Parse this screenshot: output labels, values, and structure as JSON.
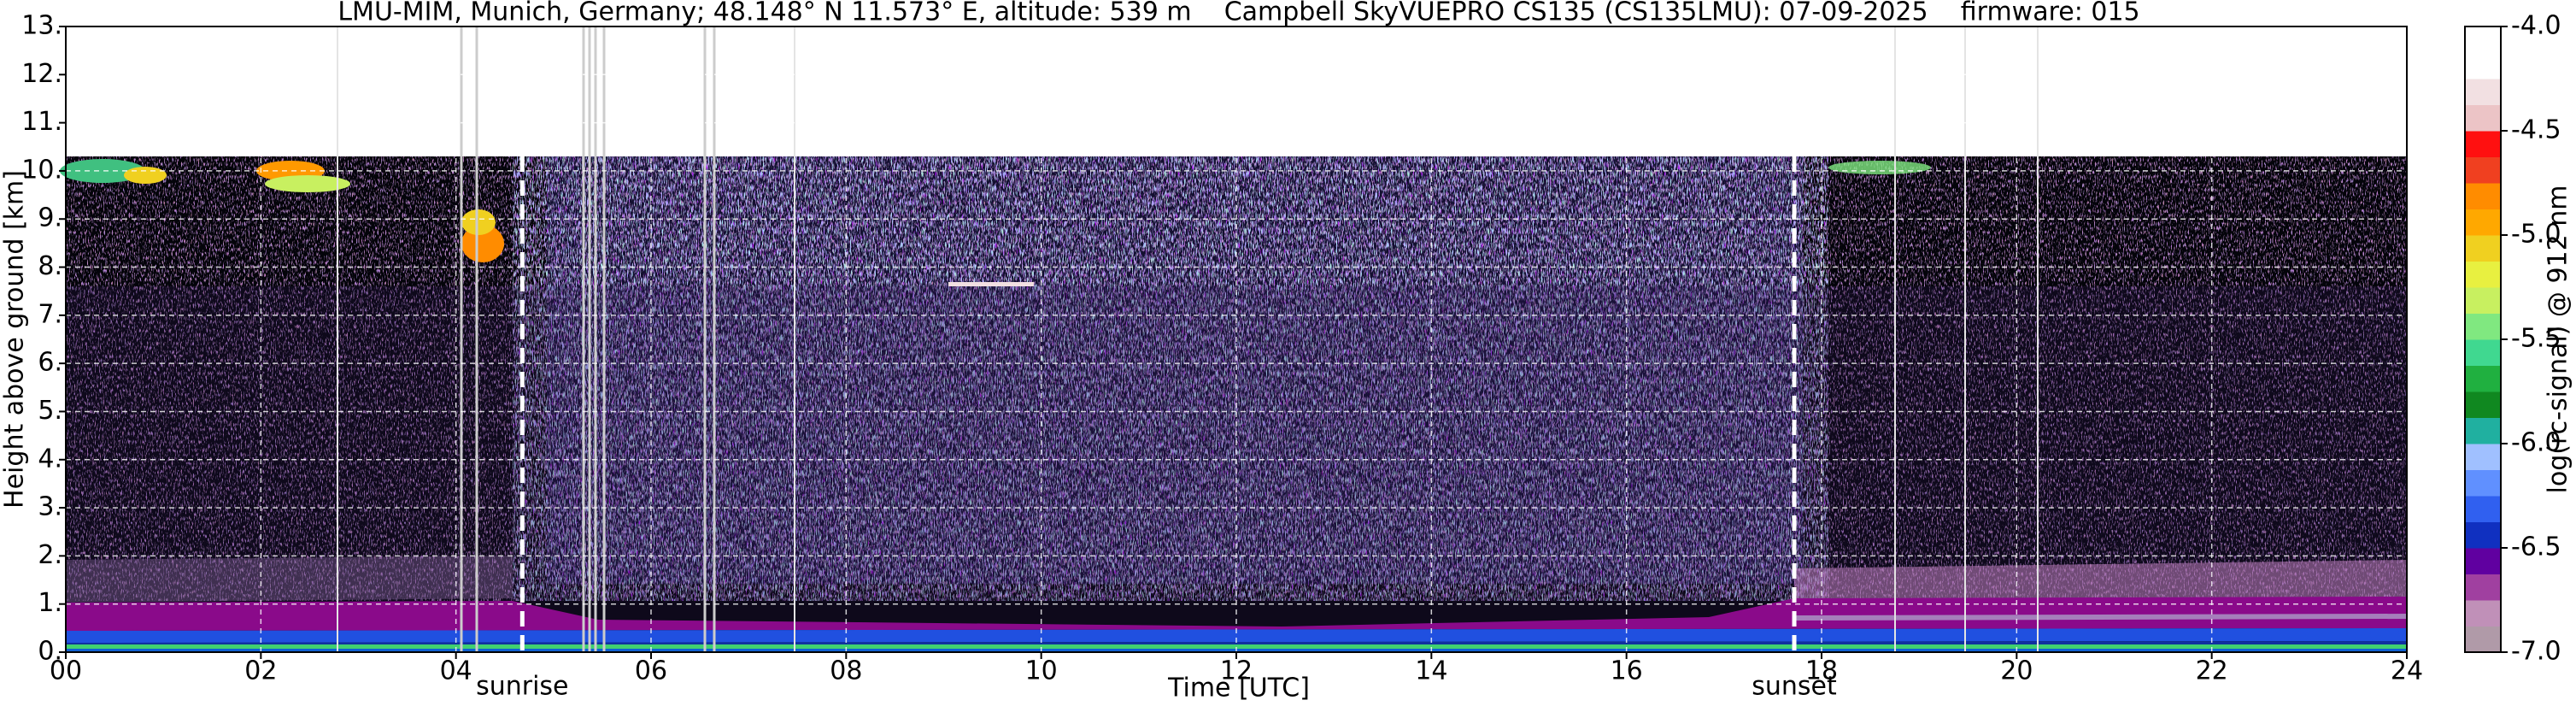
{
  "chart_data": {
    "type": "heatmap",
    "title": "LMU-MIM, Munich, Germany; 48.148° N 11.573° E, altitude: 539 m    Campbell SkyVUEPRO CS135 (CS135LMU): 07-09-2025    firmware: 015",
    "x_label": "Time [UTC]",
    "y_label": "Height above ground [km]",
    "colorbar_label": "log(rc-signal) @ 912 nm",
    "xlim": [
      0,
      24
    ],
    "xticks": [
      {
        "value": 0,
        "label": "00"
      },
      {
        "value": 2,
        "label": "02"
      },
      {
        "value": 4,
        "label": "04"
      },
      {
        "value": 6,
        "label": "06"
      },
      {
        "value": 8,
        "label": "08"
      },
      10,
      12,
      14,
      16,
      18,
      20,
      22,
      24
    ],
    "ylim": [
      0,
      13
    ],
    "yticks": [
      {
        "value": 0,
        "label": "0."
      },
      {
        "value": 1,
        "label": "1."
      },
      {
        "value": 2,
        "label": "2."
      },
      {
        "value": 3,
        "label": "3."
      },
      {
        "value": 4,
        "label": "4."
      },
      {
        "value": 5,
        "label": "5."
      },
      {
        "value": 6,
        "label": "6."
      },
      {
        "value": 7,
        "label": "7."
      },
      {
        "value": 8,
        "label": "8."
      },
      {
        "value": 9,
        "label": "9."
      },
      {
        "value": 10,
        "label": "10."
      },
      {
        "value": 11,
        "label": "11."
      },
      {
        "value": 12,
        "label": "12."
      },
      {
        "value": 13,
        "label": "13."
      }
    ],
    "clim": [
      -7,
      -4
    ],
    "cticks": [
      {
        "value": -4,
        "label": "-4.0"
      },
      -4.5,
      {
        "value": -5,
        "label": "-5.0"
      },
      -5.5,
      {
        "value": -6,
        "label": "-6.0"
      },
      -6.5,
      {
        "value": -7,
        "label": "-7.0"
      }
    ],
    "colorbar_colors": [
      "#b09aa8",
      "#c090b8",
      "#a040a0",
      "#6000a0",
      "#1030c0",
      "#3060f0",
      "#6090ff",
      "#a0c0ff",
      "#20b0a0",
      "#108820",
      "#20b040",
      "#40d890",
      "#80e880",
      "#c8f060",
      "#e8f040",
      "#f0d020",
      "#ffa800",
      "#ff8c00",
      "#f04020",
      "#ff1010",
      "#ecc4c6",
      "#f2e0e2",
      "#ffffff",
      "#ffffff"
    ],
    "grid": true,
    "annotations": [
      {
        "text": "sunrise",
        "x": 4.68
      },
      {
        "text": "sunset",
        "x": 17.72
      }
    ]
  }
}
